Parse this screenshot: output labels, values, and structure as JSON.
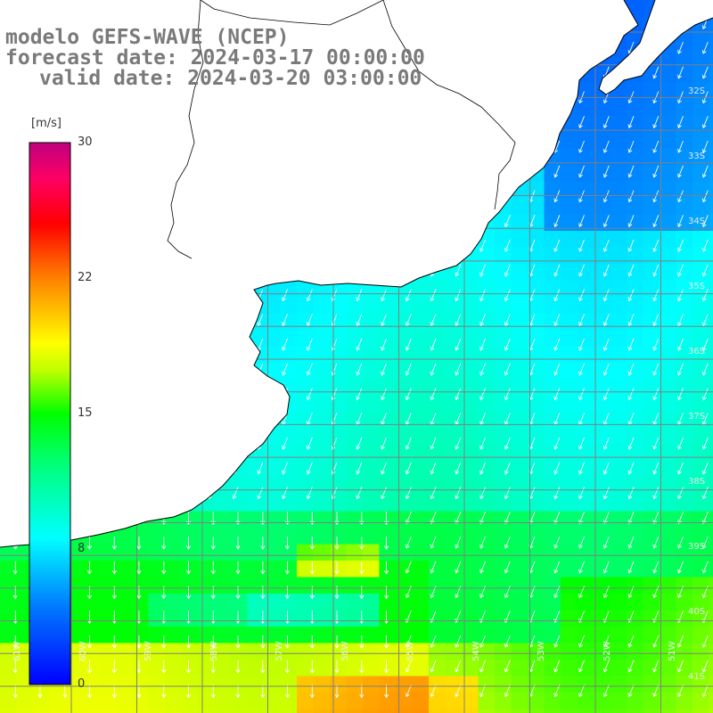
{
  "title": {
    "model": "modelo GEFS-WAVE (NCEP)",
    "forecast": "forecast date: 2024-03-17 00:00:00",
    "valid": "valid date: 2024-03-20 03:00:00"
  },
  "colorbar": {
    "unit": "[m/s]",
    "ticks": [
      "30",
      "22",
      "15",
      "8",
      "0"
    ],
    "tick_values": [
      30,
      22,
      15,
      8,
      0
    ],
    "range": [
      0,
      30
    ],
    "colors": [
      "#0000ff",
      "#0080ff",
      "#00ffff",
      "#00ff00",
      "#80ff00",
      "#ffff00",
      "#ff8000",
      "#ff0000",
      "#ff0080",
      "#c00080"
    ]
  },
  "axes": {
    "lat_labels": [
      "32S",
      "33S",
      "34S",
      "35S",
      "36S",
      "37S",
      "38S",
      "39S",
      "40S",
      "41S"
    ],
    "lon_labels": [
      "61W",
      "60W",
      "59W",
      "58W",
      "57W",
      "56W",
      "55W",
      "54W",
      "53W",
      "52W",
      "51W"
    ]
  },
  "colors": {
    "land": "#ffffff",
    "coast": "#000000",
    "grid": "#808080",
    "arrows": "#ffffff",
    "title_text": "#7a7a7a"
  }
}
